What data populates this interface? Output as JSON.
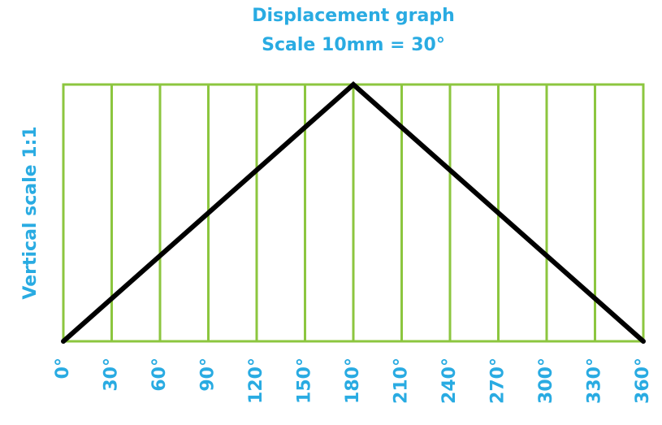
{
  "chart_data": {
    "type": "line",
    "title": "Displacement graph",
    "subtitle": "Scale 10mm = 30°",
    "ylabel": "Vertical scale 1:1",
    "x": [
      0,
      180,
      360
    ],
    "series": [
      {
        "name": "Displacement",
        "color": "#000000",
        "values": [
          0,
          1,
          0
        ]
      }
    ],
    "xlim": [
      0,
      360
    ],
    "ylim": [
      0,
      1
    ],
    "xticks": [
      {
        "value": 0,
        "label": "0°"
      },
      {
        "value": 30,
        "label": "30°"
      },
      {
        "value": 60,
        "label": "60°"
      },
      {
        "value": 90,
        "label": "90°"
      },
      {
        "value": 120,
        "label": "120°"
      },
      {
        "value": 150,
        "label": "150°"
      },
      {
        "value": 180,
        "label": "180°"
      },
      {
        "value": 210,
        "label": "210°"
      },
      {
        "value": 240,
        "label": "240°"
      },
      {
        "value": 270,
        "label": "270°"
      },
      {
        "value": 300,
        "label": "300°"
      },
      {
        "value": 330,
        "label": "330°"
      },
      {
        "value": 360,
        "label": "360°"
      }
    ],
    "grid": true,
    "grid_color": "#8cc63f",
    "text_color": "#29abe2"
  }
}
